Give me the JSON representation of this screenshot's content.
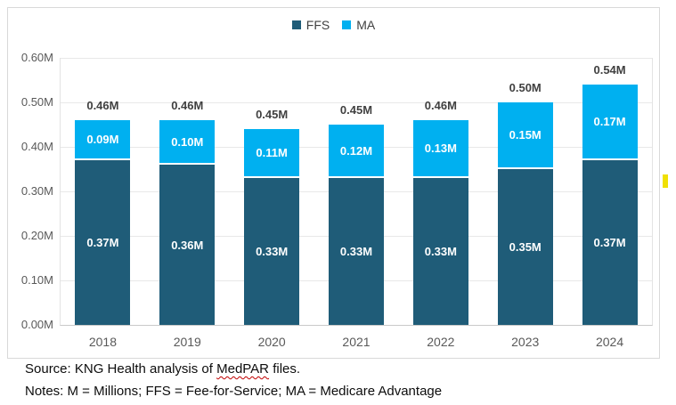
{
  "legend": {
    "items": [
      {
        "label": "FFS",
        "color": "#1F5C78"
      },
      {
        "label": "MA",
        "color": "#00B0F0"
      }
    ]
  },
  "chart_data": {
    "type": "bar",
    "stacked": true,
    "title": "",
    "xlabel": "",
    "ylabel": "",
    "categories": [
      "2018",
      "2019",
      "2020",
      "2021",
      "2022",
      "2023",
      "2024"
    ],
    "series": [
      {
        "name": "FFS",
        "color": "#1F5C78",
        "values": [
          0.37,
          0.36,
          0.33,
          0.33,
          0.33,
          0.35,
          0.37
        ],
        "data_labels": [
          "0.37M",
          "0.36M",
          "0.33M",
          "0.33M",
          "0.33M",
          "0.35M",
          "0.37M"
        ]
      },
      {
        "name": "MA",
        "color": "#00B0F0",
        "values": [
          0.09,
          0.1,
          0.11,
          0.12,
          0.13,
          0.15,
          0.17
        ],
        "data_labels": [
          "0.09M",
          "0.10M",
          "0.11M",
          "0.12M",
          "0.13M",
          "0.15M",
          "0.17M"
        ]
      }
    ],
    "total_labels": [
      "0.46M",
      "0.46M",
      "0.45M",
      "0.45M",
      "0.46M",
      "0.50M",
      "0.54M"
    ],
    "yticks": [
      "0.00M",
      "0.10M",
      "0.20M",
      "0.30M",
      "0.40M",
      "0.50M",
      "0.60M"
    ],
    "ylim": [
      0,
      0.6
    ],
    "units": "millions",
    "grid": true,
    "legend_position": "top"
  },
  "footer": {
    "source_prefix": "Source: KNG Health analysis of ",
    "source_misspelled_word": "MedPAR",
    "source_suffix": " files.",
    "notes": "Notes: M = Millions; FFS = Fee-for-Service; MA = Medicare Advantage"
  },
  "decorations": {
    "yellow_marker_color": "#F0E005"
  }
}
